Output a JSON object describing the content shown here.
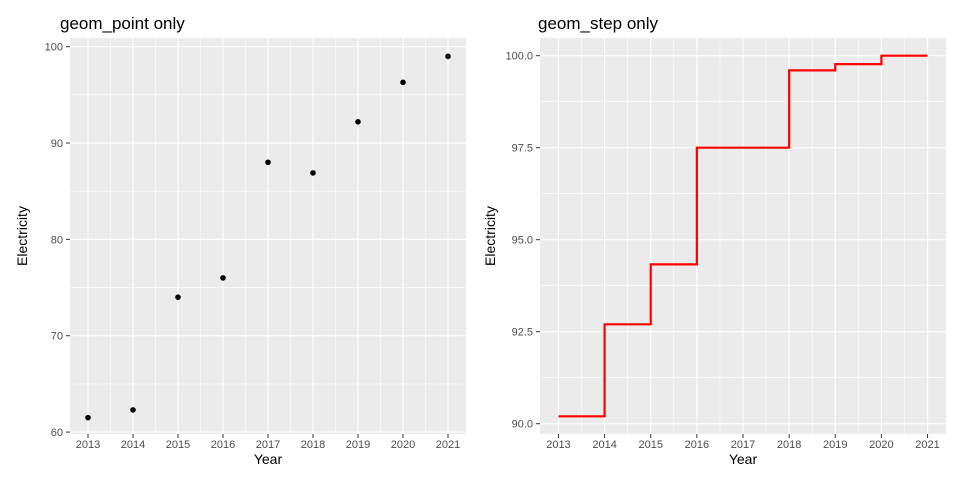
{
  "chart_data": [
    {
      "type": "scatter",
      "title": "geom_point only",
      "xlabel": "Year",
      "ylabel": "Electricity",
      "x": [
        2013,
        2014,
        2015,
        2016,
        2017,
        2018,
        2019,
        2020,
        2021
      ],
      "y": [
        61.5,
        62.3,
        74.0,
        76.0,
        88.0,
        86.9,
        92.2,
        96.3,
        99.0
      ],
      "xlim": [
        2012.6,
        2021.4
      ],
      "ylim": [
        59.8,
        100.9
      ],
      "xticks": [
        2013,
        2014,
        2015,
        2016,
        2017,
        2018,
        2019,
        2020,
        2021
      ],
      "yticks": [
        60,
        70,
        80,
        90,
        100
      ],
      "ytick_labels": [
        "60",
        "70",
        "80",
        "90",
        "100"
      ],
      "grid": true,
      "point_color": "#000000",
      "panel_color": "#ebebeb"
    },
    {
      "type": "line",
      "subtype": "step",
      "title": "geom_step only",
      "xlabel": "Year",
      "ylabel": "Electricity",
      "x": [
        2013,
        2014,
        2015,
        2016,
        2017,
        2018,
        2019,
        2020,
        2021
      ],
      "y": [
        90.2,
        92.7,
        94.33,
        97.5,
        97.5,
        99.6,
        99.77,
        100.0,
        100.0
      ],
      "xlim": [
        2012.6,
        2021.4
      ],
      "ylim": [
        89.72,
        100.48
      ],
      "xticks": [
        2013,
        2014,
        2015,
        2016,
        2017,
        2018,
        2019,
        2020,
        2021
      ],
      "yticks": [
        90.0,
        92.5,
        95.0,
        97.5,
        100.0
      ],
      "ytick_labels": [
        "90.0",
        "92.5",
        "95.0",
        "97.5",
        "100.0"
      ],
      "grid": true,
      "line_color": "#ff0000",
      "panel_color": "#ebebeb"
    }
  ]
}
